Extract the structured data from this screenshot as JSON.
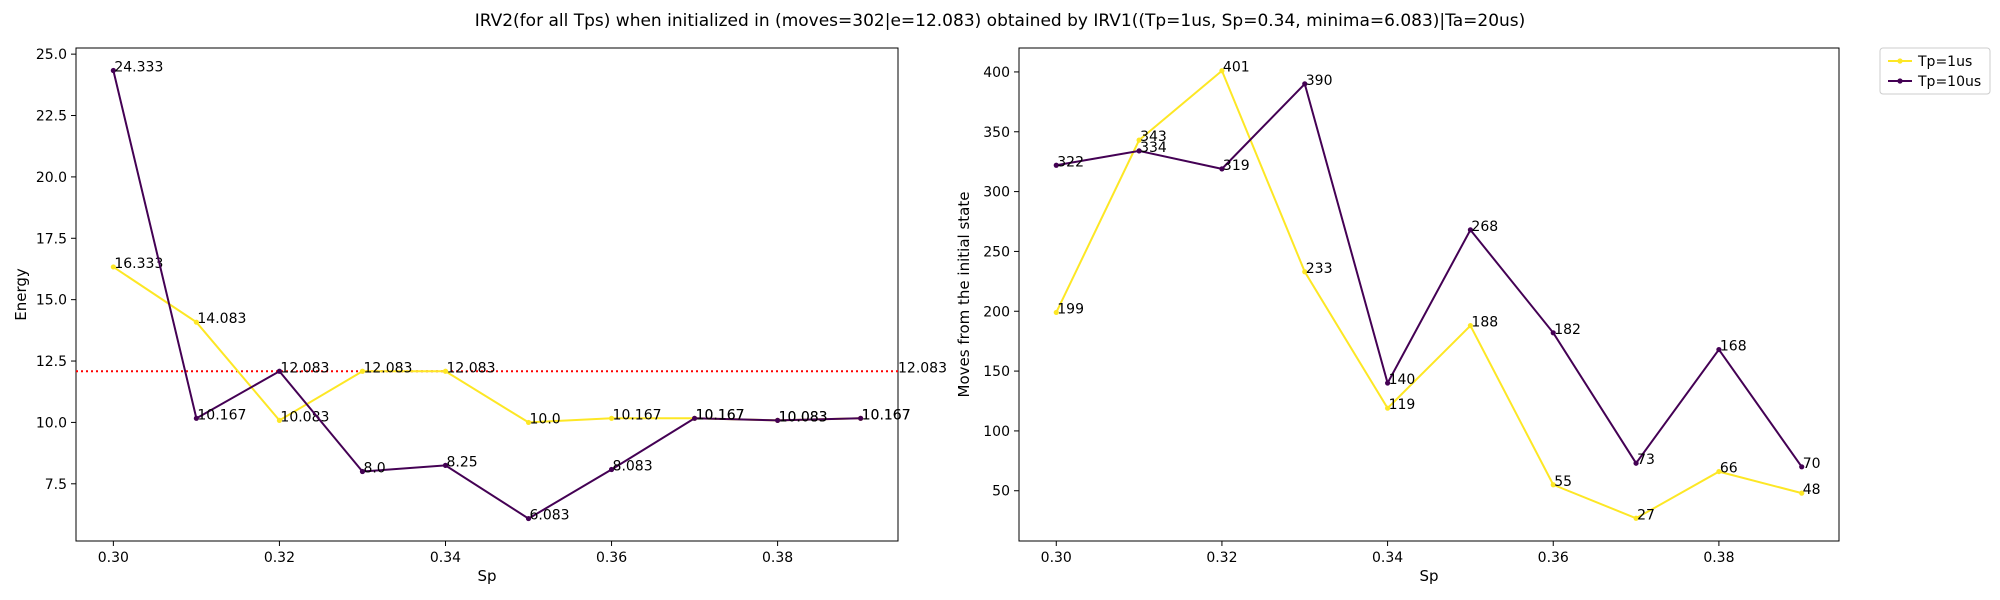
{
  "figure": {
    "title": "IRV2(for all Tps) when initialized in (moves=302|e=12.083) obtained by IRV1((Tp=1us, Sp=0.34, minima=6.083)|Ta=20us)"
  },
  "legend": {
    "placement": "outside-top-right",
    "entries": [
      {
        "label": "Tp=1us",
        "color": "#fde725"
      },
      {
        "label": "Tp=10us",
        "color": "#440154"
      }
    ]
  },
  "chart_data": [
    {
      "type": "line",
      "title": "",
      "xlabel": "Sp",
      "ylabel": "Energy",
      "x": [
        0.3,
        0.31,
        0.32,
        0.33,
        0.34,
        0.35,
        0.36,
        0.37,
        0.38,
        0.39
      ],
      "xlim": [
        0.2955,
        0.3945
      ],
      "ylim": [
        5.17,
        25.25
      ],
      "xticks": [
        0.3,
        0.32,
        0.34,
        0.36,
        0.38
      ],
      "xtick_labels": [
        "0.30",
        "0.32",
        "0.34",
        "0.36",
        "0.38"
      ],
      "yticks": [
        7.5,
        10.0,
        12.5,
        15.0,
        17.5,
        20.0,
        22.5,
        25.0
      ],
      "ytick_labels": [
        "7.5",
        "10.0",
        "12.5",
        "15.0",
        "17.5",
        "20.0",
        "22.5",
        "25.0"
      ],
      "grid": false,
      "series": [
        {
          "name": "Tp=1us",
          "color": "#fde725",
          "values": [
            16.333,
            14.083,
            10.083,
            12.083,
            12.083,
            10.0,
            10.167,
            10.167,
            10.083,
            10.167
          ],
          "labels": [
            "16.333",
            "14.083",
            "10.083",
            "12.083",
            "12.083",
            "10.0",
            "10.167",
            "10.167",
            "10.083",
            "10.167"
          ]
        },
        {
          "name": "Tp=10us",
          "color": "#440154",
          "values": [
            24.333,
            10.167,
            12.083,
            8.0,
            8.25,
            6.083,
            8.083,
            10.167,
            10.083,
            10.167
          ],
          "labels": [
            "24.333",
            "10.167",
            "12.083",
            "8.0",
            "8.25",
            "6.083",
            "8.083",
            "10.167",
            "10.083",
            "10.167"
          ]
        }
      ],
      "reference_line": {
        "y": 12.083,
        "label": "12.083",
        "color": "#ff0000",
        "style": "dotted"
      }
    },
    {
      "type": "line",
      "title": "",
      "xlabel": "Sp",
      "ylabel": "Moves from the initial state",
      "x": [
        0.3,
        0.31,
        0.32,
        0.33,
        0.34,
        0.35,
        0.36,
        0.37,
        0.38,
        0.39
      ],
      "xlim": [
        0.2955,
        0.3945
      ],
      "ylim": [
        8,
        420
      ],
      "xticks": [
        0.3,
        0.32,
        0.34,
        0.36,
        0.38
      ],
      "xtick_labels": [
        "0.30",
        "0.32",
        "0.34",
        "0.36",
        "0.38"
      ],
      "yticks": [
        50,
        100,
        150,
        200,
        250,
        300,
        350,
        400
      ],
      "ytick_labels": [
        "50",
        "100",
        "150",
        "200",
        "250",
        "300",
        "350",
        "400"
      ],
      "grid": false,
      "series": [
        {
          "name": "Tp=1us",
          "color": "#fde725",
          "values": [
            199,
            343,
            401,
            233,
            119,
            188,
            55,
            27,
            66,
            48
          ],
          "labels": [
            "199",
            "343",
            "401",
            "233",
            "119",
            "188",
            "55",
            "27",
            "66",
            "48"
          ]
        },
        {
          "name": "Tp=10us",
          "color": "#440154",
          "values": [
            322,
            334,
            319,
            390,
            140,
            268,
            182,
            73,
            168,
            70
          ],
          "labels": [
            "322",
            "334",
            "319",
            "390",
            "140",
            "268",
            "182",
            "73",
            "168",
            "70"
          ]
        }
      ]
    }
  ]
}
